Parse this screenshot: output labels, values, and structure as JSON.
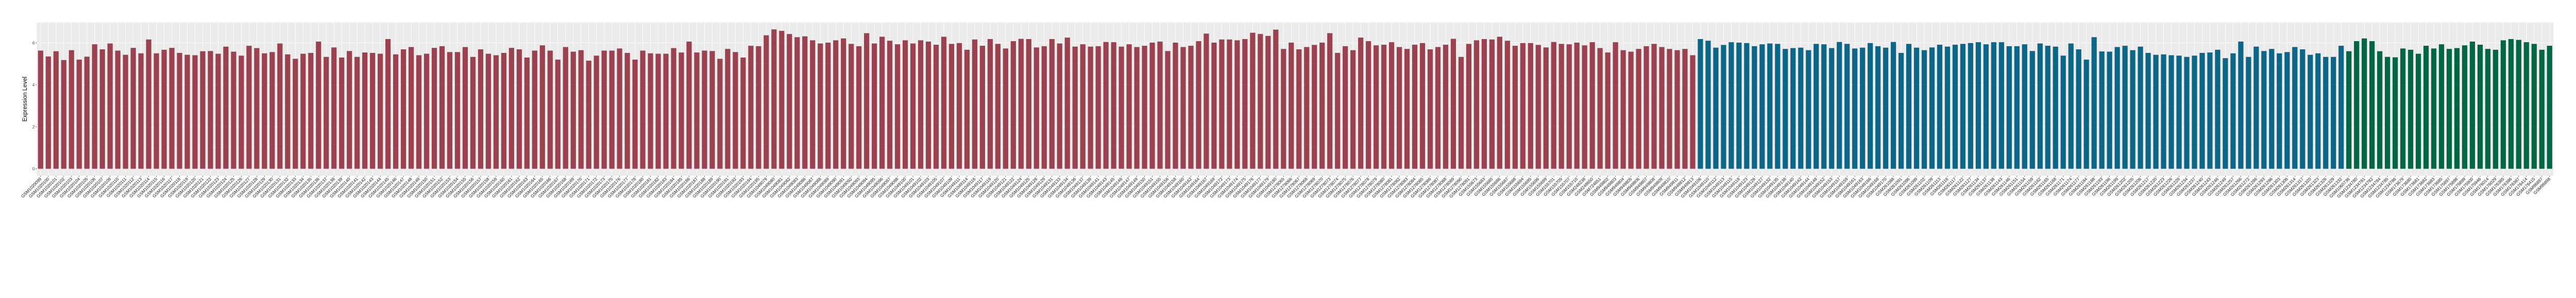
{
  "chart_data": {
    "type": "bar",
    "title": "",
    "xlabel": "",
    "ylabel": "Expression Level",
    "ylim": [
      -0.33,
      6.97
    ],
    "yticks": [
      "0",
      "2",
      "4",
      "6"
    ],
    "grid": true,
    "legend": "none",
    "background": "#EBEBEB",
    "series": [
      {
        "color": "#9B4150",
        "categories": [
          "GSM1020099",
          "GSM1020100",
          "GSM1020101",
          "GSM1020102",
          "GSM1020103",
          "GSM1020104",
          "GSM1020105",
          "GSM1020106",
          "GSM1020107",
          "GSM1020109",
          "GSM1020110",
          "GSM1020111",
          "GSM1020112",
          "GSM1020113",
          "GSM1020114",
          "GSM1020115",
          "GSM1020116",
          "GSM1020117",
          "GSM1020118",
          "GSM1020119",
          "GSM1020120",
          "GSM1020121",
          "GSM1020122",
          "GSM1020123",
          "GSM1020124",
          "GSM1020125",
          "GSM1020126",
          "GSM1020127",
          "GSM1020128",
          "GSM1020129",
          "GSM1020130",
          "GSM1020131",
          "GSM1020132",
          "GSM1020133",
          "GSM1020134",
          "GSM1020135",
          "GSM1020136",
          "GSM1020137",
          "GSM1020138",
          "GSM1020139",
          "GSM1020140",
          "GSM1020141",
          "GSM1020142",
          "GSM1020143",
          "GSM1020144",
          "GSM1020145",
          "GSM1020146",
          "GSM1020147",
          "GSM1020148",
          "GSM1020149",
          "GSM1020150",
          "GSM1020151",
          "GSM1020152",
          "GSM1020153",
          "GSM1020154",
          "GSM1020155",
          "GSM1020156",
          "GSM1020157",
          "GSM1020158",
          "GSM1020159",
          "GSM1020160",
          "GSM1020161",
          "GSM1020162",
          "GSM1020163",
          "GSM1020164",
          "GSM1020165",
          "GSM1020166",
          "GSM1020167",
          "GSM1020168",
          "GSM1020169",
          "GSM1020170",
          "GSM1020171",
          "GSM1020172",
          "GSM1020173",
          "GSM1020175",
          "GSM1020176",
          "GSM1020177",
          "GSM1020178",
          "GSM1020180",
          "GSM1020181",
          "GSM1020182",
          "GSM1020183",
          "GSM1020184",
          "GSM1020185",
          "GSM1020186",
          "GSM1020187",
          "GSM1020188",
          "GSM1020189",
          "GSM1020190",
          "GSM1020191",
          "GSM1020192",
          "GSM1020193",
          "GSM1020194",
          "GSM1020195",
          "GSM1049079",
          "GSM1049080",
          "GSM1049081",
          "GSM1049082",
          "GSM1049083",
          "GSM1049086",
          "GSM1049087",
          "GSM1049088",
          "GSM1049089",
          "GSM1049090",
          "GSM1049091",
          "GSM1049092",
          "GSM1049093",
          "GSM1049094",
          "GSM1049095",
          "GSM1049096",
          "GSM1049097",
          "GSM1049098",
          "GSM1049100",
          "GSM1049101",
          "GSM1049102",
          "GSM1049103",
          "GSM1049105",
          "GSM1049107",
          "GSM1049109",
          "GSM1049111",
          "GSM1049114",
          "GSM1049116",
          "GSM1049117",
          "GSM1049119",
          "GSM1049120",
          "GSM1049121",
          "GSM1049122",
          "GSM1049124",
          "GSM1049125",
          "GSM1049128",
          "GSM1049129",
          "GSM1049131",
          "GSM1049133",
          "GSM1049134",
          "GSM1049136",
          "GSM1049137",
          "GSM1049139",
          "GSM1049141",
          "GSM1049143",
          "GSM1049145",
          "GSM1049146",
          "GSM1049147",
          "GSM1049149",
          "GSM1049150",
          "GSM1049151",
          "GSM1049155",
          "GSM1049156",
          "GSM1049158",
          "GSM1049160",
          "GSM1049162",
          "GSM1049164",
          "GSM1049167",
          "GSM1049169",
          "GSM1049172",
          "GSM1049173",
          "GSM1049174",
          "GSM1049175",
          "GSM1049176",
          "GSM1049177",
          "GSM1049179",
          "GSM1049180",
          "GSM1278065",
          "GSM1278066",
          "GSM1278067",
          "GSM1278068",
          "GSM1278069",
          "GSM1278070",
          "GSM1278073",
          "GSM1278074",
          "GSM1278075",
          "GSM1278076",
          "GSM1278077",
          "GSM1278078",
          "GSM1278079",
          "GSM1278080",
          "GSM1278081",
          "GSM1278082",
          "GSM1278083",
          "GSM1278084",
          "GSM1278085",
          "GSM1278086",
          "GSM1278087",
          "GSM1278088",
          "GSM1278089",
          "GSM1278090",
          "GSM1278091",
          "GSM155673",
          "GSM155683",
          "GSM155685",
          "GSM155686",
          "GSM155687",
          "GSM155688",
          "GSM155694",
          "GSM155695",
          "GSM155696",
          "GSM155699",
          "GSM155701",
          "GSM155705",
          "GSM155707",
          "GSM155710",
          "GSM248238",
          "GSM248650",
          "GSM724651",
          "GSM949802",
          "GSM949803",
          "GSM949804",
          "GSM949805",
          "GSM949806",
          "GSM949807",
          "GSM949808",
          "GSM949809",
          "GSM949810",
          "GSM949811",
          "GSM949812",
          "GSM949813"
        ],
        "values": [
          5.63,
          5.35,
          5.6,
          5.18,
          5.65,
          5.2,
          5.34,
          5.93,
          5.69,
          5.97,
          5.63,
          5.43,
          5.76,
          5.5,
          6.16,
          5.5,
          5.67,
          5.76,
          5.52,
          5.43,
          5.41,
          5.6,
          5.61,
          5.48,
          5.82,
          5.58,
          5.39,
          5.86,
          5.75,
          5.5,
          5.56,
          5.97,
          5.45,
          5.24,
          5.48,
          5.52,
          6.06,
          5.33,
          5.78,
          5.3,
          5.61,
          5.33,
          5.54,
          5.52,
          5.48,
          6.18,
          5.45,
          5.69,
          5.8,
          5.41,
          5.48,
          5.76,
          5.84,
          5.56,
          5.56,
          5.8,
          5.33,
          5.69,
          5.48,
          5.41,
          5.52,
          5.76,
          5.69,
          5.3,
          5.63,
          5.88,
          5.63,
          5.2,
          5.8,
          5.58,
          5.65,
          5.15,
          5.39,
          5.63,
          5.63,
          5.73,
          5.52,
          5.2,
          5.63,
          5.5,
          5.48,
          5.48,
          5.75,
          5.54,
          6.06,
          5.54,
          5.63,
          5.61,
          5.24,
          5.71,
          5.56,
          5.3,
          5.86,
          5.84,
          6.36,
          6.64,
          6.57,
          6.42,
          6.27,
          6.31,
          6.12,
          5.97,
          6.01,
          6.12,
          6.21,
          5.95,
          5.84,
          6.46,
          5.97,
          6.29,
          6.1,
          5.93,
          6.12,
          5.97,
          6.12,
          6.06,
          5.91,
          6.29,
          5.95,
          5.99,
          5.67,
          6.16,
          5.86,
          6.18,
          5.95,
          5.73,
          6.08,
          6.19,
          6.18,
          5.78,
          5.84,
          6.18,
          5.97,
          6.25,
          5.82,
          5.93,
          5.82,
          5.84,
          6.04,
          6.03,
          5.82,
          5.93,
          5.8,
          5.86,
          6.01,
          6.06,
          5.61,
          6.01,
          5.8,
          5.86,
          6.08,
          6.44,
          6.01,
          6.16,
          6.16,
          6.12,
          6.18,
          6.48,
          6.42,
          6.33,
          6.63,
          5.71,
          6.01,
          5.69,
          5.8,
          5.9,
          6.01,
          6.46,
          5.52,
          5.84,
          5.65,
          6.25,
          6.08,
          5.88,
          5.91,
          6.03,
          5.8,
          5.71,
          5.91,
          5.99,
          5.69,
          5.8,
          5.91,
          6.19,
          5.33,
          5.95,
          6.12,
          6.18,
          6.16,
          6.29,
          6.1,
          5.86,
          5.99,
          5.99,
          5.9,
          5.78,
          6.04,
          5.95,
          5.93,
          6.01,
          5.88,
          6.03,
          5.75,
          5.54,
          6.03,
          5.65,
          5.58,
          5.71,
          5.84,
          5.95,
          5.8,
          5.71,
          5.65,
          5.71,
          5.41
        ]
      },
      {
        "color": "#0B6688",
        "categories": [
          "GSM1049106",
          "GSM1049110",
          "GSM1049112",
          "GSM1049113",
          "GSM1049115",
          "GSM1049118",
          "GSM1049123",
          "GSM1049126",
          "GSM1049127",
          "GSM1049132",
          "GSM1049135",
          "GSM1049138",
          "GSM1049140",
          "GSM1049142",
          "GSM1049144",
          "GSM1049148",
          "GSM1049152",
          "GSM1049153",
          "GSM1049157",
          "GSM1049159",
          "GSM1049161",
          "GSM1049163",
          "GSM1049166",
          "GSM1049168",
          "GSM1049170",
          "GSM261088",
          "GSM261091",
          "GSM261096",
          "GSM261099",
          "GSM261102",
          "GSM261109",
          "GSM261113",
          "GSM261116",
          "GSM261117",
          "GSM261122",
          "GSM261127",
          "GSM261134",
          "GSM261137",
          "GSM261138",
          "GSM261143",
          "GSM261146",
          "GSM261151",
          "GSM261154",
          "GSM261159",
          "GSM261162",
          "GSM261165",
          "GSM261168",
          "GSM261171",
          "GSM261174",
          "GSM261177",
          "GSM261184",
          "GSM261188",
          "GSM261193",
          "GSM261196",
          "GSM261199",
          "GSM261202",
          "GSM261205",
          "GSM261206",
          "GSM261217",
          "GSM261220",
          "GSM261223",
          "GSM261226",
          "GSM261229",
          "GSM261234",
          "GSM261237",
          "GSM261240",
          "GSM261243",
          "GSM261246",
          "GSM261249",
          "GSM261257",
          "GSM261266",
          "GSM261272",
          "GSM261286",
          "GSM261293",
          "GSM261296",
          "GSM261303",
          "GSM261306",
          "GSM261314",
          "GSM261317",
          "GSM261320",
          "GSM261323",
          "GSM261326",
          "GSM261329",
          "GSM261332"
        ],
        "values": [
          6.18,
          6.1,
          5.77,
          5.9,
          6.03,
          6.01,
          5.99,
          5.84,
          5.93,
          5.97,
          5.95,
          5.71,
          5.75,
          5.77,
          5.65,
          5.95,
          5.93,
          5.75,
          6.04,
          5.95,
          5.73,
          5.77,
          5.99,
          5.84,
          5.77,
          6.04,
          5.52,
          5.95,
          5.77,
          5.65,
          5.78,
          5.91,
          5.82,
          5.91,
          5.95,
          5.99,
          6.03,
          5.93,
          6.03,
          6.03,
          5.84,
          5.84,
          5.93,
          5.61,
          5.97,
          5.86,
          5.82,
          5.39,
          5.97,
          5.69,
          5.2,
          6.27,
          5.59,
          5.58,
          5.8,
          5.86,
          5.65,
          5.82,
          5.52,
          5.43,
          5.45,
          5.41,
          5.39,
          5.33,
          5.39,
          5.52,
          5.54,
          5.67,
          5.27,
          5.5,
          6.06,
          5.33,
          5.82,
          5.61,
          5.71,
          5.5,
          5.56,
          5.8,
          5.69,
          5.43,
          5.5,
          5.33,
          5.33,
          5.86
        ]
      },
      {
        "color": "#006643",
        "categories": [
          "GSM1060736",
          "GSM1234780",
          "GSM1234781",
          "GSM1234782",
          "GSM1234784",
          "GSM1234785",
          "GSM1234786",
          "GSM173679",
          "GSM173680",
          "GSM173681",
          "GSM173682",
          "GSM173683",
          "GSM173685",
          "GSM175897",
          "GSM175898",
          "GSM175899",
          "GSM175900",
          "GSM175946",
          "GSM176014",
          "GSM176029",
          "GSM176385",
          "GSM176386",
          "GSM176387",
          "GSM176414",
          "GSM176415",
          "GSM96897",
          "GSM96898"
        ],
        "values": [
          5.6,
          6.08,
          6.21,
          6.08,
          5.6,
          5.33,
          5.31,
          5.73,
          5.67,
          5.48,
          5.86,
          5.73,
          5.93,
          5.71,
          5.75,
          5.88,
          6.06,
          5.91,
          5.71,
          5.67,
          6.12,
          6.18,
          6.14,
          6.03,
          5.95,
          5.67,
          5.86
        ]
      }
    ]
  }
}
